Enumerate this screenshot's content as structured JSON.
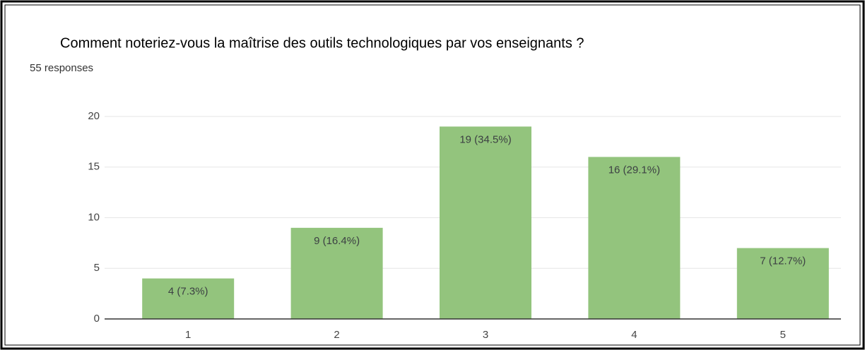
{
  "chart_data": {
    "type": "bar",
    "title": "Comment noteriez-vous la maîtrise des outils technologiques par vos enseignants ?",
    "subtitle": "55 responses",
    "categories": [
      "1",
      "2",
      "3",
      "4",
      "5"
    ],
    "values": [
      4,
      9,
      19,
      16,
      7
    ],
    "value_labels": [
      "4 (7.3%)",
      "9 (16.4%)",
      "19 (34.5%)",
      "16 (29.1%)",
      "7 (12.7%)"
    ],
    "color": "#93c47d",
    "ylim": [
      0,
      20
    ],
    "yticks": [
      0,
      5,
      10,
      15,
      20
    ],
    "grid": true
  }
}
